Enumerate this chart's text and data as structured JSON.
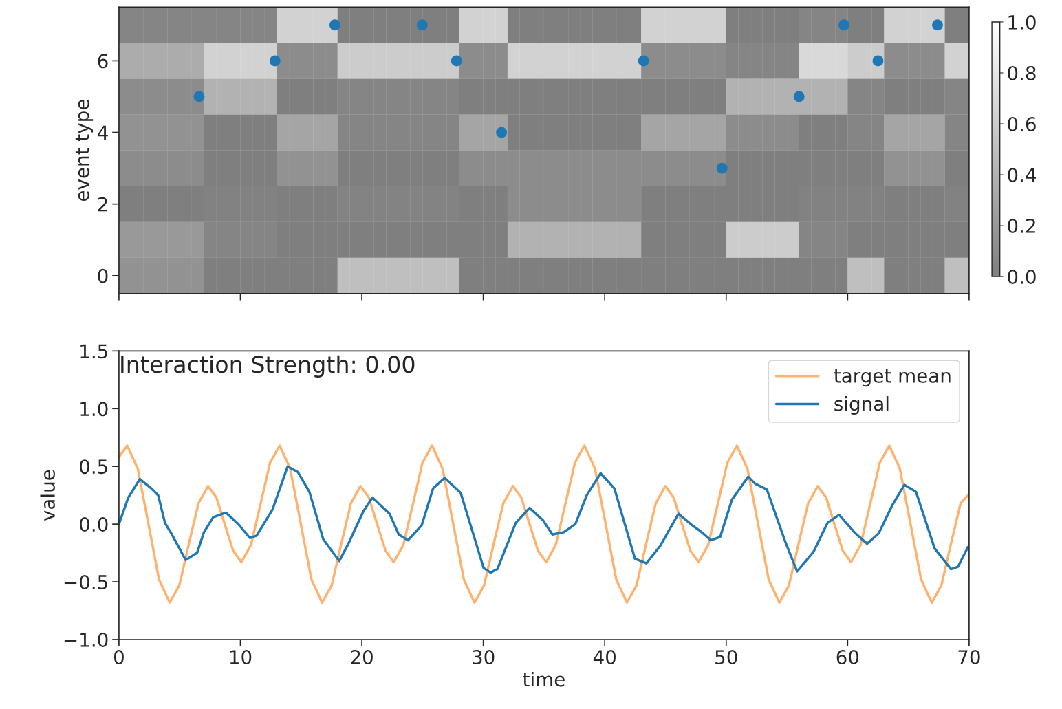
{
  "chart_data": [
    {
      "type": "heatmap",
      "ylabel": "event type",
      "x": [
        0.5,
        1.5,
        2.5,
        3.5,
        4.5,
        5.5,
        6.5,
        7.5,
        8.5,
        9.5,
        10.5,
        11.5,
        12.5,
        13.5,
        14.5,
        15.5,
        16.5,
        17.5,
        18.5,
        19.5,
        20.5,
        21.5,
        22.5,
        23.5,
        24.5,
        25.5,
        26.5,
        27.5,
        28.5,
        29.5,
        30.5,
        31.5,
        32.5,
        33.5,
        34.5,
        35.5,
        36.5,
        37.5,
        38.5,
        39.5,
        40.5,
        41.5,
        42.5,
        43.5,
        44.5,
        45.5,
        46.5,
        47.5,
        48.5,
        49.5,
        50.5,
        51.5,
        52.5,
        53.5,
        54.5,
        55.5,
        56.5,
        57.5,
        58.5,
        59.5,
        60.5,
        61.5,
        62.5,
        63.5,
        64.5,
        65.5,
        66.5,
        67.5,
        68.5,
        69.5
      ],
      "y": [
        7,
        6,
        5,
        4,
        3,
        2,
        1,
        0
      ],
      "cells": [
        [
          0.05,
          0.05,
          0.05,
          0.05,
          0.05,
          0.05,
          0.05,
          0.05,
          0.05,
          0.05,
          0.05,
          0.05,
          0.05,
          0.65,
          0.65,
          0.65,
          0.65,
          0.65,
          0,
          0,
          0,
          0,
          0,
          0,
          0,
          0,
          0,
          0,
          0.65,
          0.65,
          0.65,
          0.65,
          0,
          0,
          0,
          0,
          0,
          0,
          0,
          0,
          0,
          0,
          0,
          0.65,
          0.65,
          0.65,
          0.65,
          0.65,
          0.65,
          0.65,
          0,
          0,
          0,
          0,
          0,
          0,
          0.05,
          0.05,
          0.05,
          0.05,
          0,
          0,
          0,
          0.65,
          0.65,
          0.65,
          0.65,
          0.65,
          0,
          0
        ],
        [
          0.35,
          0.35,
          0.35,
          0.35,
          0.35,
          0.35,
          0.35,
          0.65,
          0.65,
          0.65,
          0.65,
          0.65,
          0.65,
          0.1,
          0.1,
          0.1,
          0.1,
          0.1,
          0.6,
          0.6,
          0.6,
          0.6,
          0.6,
          0.6,
          0.6,
          0.6,
          0.6,
          0.6,
          0.1,
          0.1,
          0.1,
          0.1,
          0.65,
          0.65,
          0.65,
          0.65,
          0.65,
          0.65,
          0.65,
          0.65,
          0.65,
          0.65,
          0.65,
          0.1,
          0.1,
          0.1,
          0.1,
          0.1,
          0.1,
          0.1,
          0.05,
          0.05,
          0.05,
          0.05,
          0.05,
          0.05,
          0.7,
          0.7,
          0.7,
          0.7,
          0.6,
          0.6,
          0.6,
          0.1,
          0.1,
          0.1,
          0.1,
          0.1,
          0.65,
          0.65
        ],
        [
          0.1,
          0.1,
          0.1,
          0.1,
          0.1,
          0.1,
          0.1,
          0.4,
          0.4,
          0.4,
          0.4,
          0.4,
          0.4,
          0,
          0,
          0,
          0,
          0,
          0.05,
          0.05,
          0.05,
          0.05,
          0.05,
          0.05,
          0.05,
          0.05,
          0.05,
          0.05,
          0,
          0,
          0,
          0,
          0,
          0,
          0,
          0,
          0,
          0,
          0,
          0,
          0,
          0,
          0,
          0,
          0,
          0,
          0,
          0,
          0,
          0,
          0.4,
          0.4,
          0.4,
          0.4,
          0.4,
          0.4,
          0.4,
          0.4,
          0.4,
          0.4,
          0.05,
          0.05,
          0.05,
          0,
          0,
          0,
          0,
          0,
          0.05,
          0.05
        ],
        [
          0.15,
          0.15,
          0.15,
          0.15,
          0.15,
          0.15,
          0.15,
          0,
          0,
          0,
          0,
          0,
          0,
          0.3,
          0.3,
          0.3,
          0.3,
          0.3,
          0.05,
          0.05,
          0.05,
          0.05,
          0.05,
          0.05,
          0.05,
          0.05,
          0.05,
          0.05,
          0.3,
          0.3,
          0.3,
          0.3,
          0,
          0,
          0,
          0,
          0,
          0,
          0,
          0,
          0,
          0,
          0,
          0.3,
          0.3,
          0.3,
          0.3,
          0.3,
          0.3,
          0.3,
          0.1,
          0.1,
          0.1,
          0.1,
          0.1,
          0.1,
          0,
          0,
          0,
          0,
          0.05,
          0.05,
          0.05,
          0.3,
          0.3,
          0.3,
          0.3,
          0.3,
          0.05,
          0.05
        ],
        [
          0.1,
          0.1,
          0.1,
          0.1,
          0.1,
          0.1,
          0.1,
          0,
          0,
          0,
          0,
          0,
          0,
          0.15,
          0.15,
          0.15,
          0.15,
          0.15,
          0,
          0,
          0,
          0,
          0,
          0,
          0,
          0,
          0,
          0,
          0.1,
          0.1,
          0.1,
          0.1,
          0.1,
          0.1,
          0.1,
          0.1,
          0.1,
          0.1,
          0.1,
          0.1,
          0.1,
          0.1,
          0.1,
          0.1,
          0.1,
          0.1,
          0.1,
          0.1,
          0.1,
          0.1,
          0,
          0,
          0,
          0,
          0,
          0,
          0,
          0,
          0,
          0,
          0,
          0,
          0,
          0.15,
          0.15,
          0.15,
          0.15,
          0.15,
          0,
          0
        ],
        [
          0,
          0,
          0,
          0,
          0,
          0,
          0,
          0.02,
          0.02,
          0.02,
          0.02,
          0.02,
          0.02,
          0,
          0,
          0,
          0,
          0,
          0.03,
          0.03,
          0.03,
          0.03,
          0.03,
          0.03,
          0.03,
          0.03,
          0.03,
          0.03,
          0,
          0,
          0,
          0,
          0.1,
          0.1,
          0.1,
          0.1,
          0.1,
          0.1,
          0.1,
          0.1,
          0.1,
          0.1,
          0.1,
          0,
          0,
          0,
          0,
          0,
          0,
          0,
          0,
          0,
          0,
          0,
          0,
          0,
          0.02,
          0.02,
          0.02,
          0.02,
          0.02,
          0.02,
          0.02,
          0,
          0,
          0,
          0,
          0,
          0.02,
          0.02
        ],
        [
          0.2,
          0.2,
          0.2,
          0.2,
          0.2,
          0.2,
          0.2,
          0.05,
          0.05,
          0.05,
          0.05,
          0.05,
          0.05,
          0,
          0,
          0,
          0,
          0,
          0,
          0,
          0,
          0,
          0,
          0,
          0,
          0,
          0,
          0,
          0,
          0,
          0,
          0,
          0.4,
          0.4,
          0.4,
          0.4,
          0.4,
          0.4,
          0.4,
          0.4,
          0.4,
          0.4,
          0.4,
          0,
          0,
          0,
          0,
          0,
          0,
          0,
          0.6,
          0.6,
          0.6,
          0.6,
          0.6,
          0.6,
          0.05,
          0.05,
          0.05,
          0.05,
          0,
          0,
          0,
          0,
          0,
          0,
          0,
          0,
          0,
          0
        ],
        [
          0.15,
          0.15,
          0.15,
          0.15,
          0.15,
          0.15,
          0.15,
          0,
          0,
          0,
          0,
          0,
          0,
          0,
          0,
          0,
          0,
          0,
          0.5,
          0.5,
          0.5,
          0.5,
          0.5,
          0.5,
          0.5,
          0.5,
          0.5,
          0.5,
          0,
          0,
          0,
          0,
          0,
          0,
          0,
          0,
          0,
          0,
          0,
          0,
          0,
          0,
          0,
          0,
          0,
          0,
          0,
          0,
          0,
          0,
          0,
          0,
          0,
          0,
          0,
          0,
          0,
          0,
          0,
          0,
          0.5,
          0.5,
          0.5,
          0,
          0,
          0,
          0,
          0,
          0.5,
          0.5
        ]
      ],
      "clim": [
        0,
        1
      ],
      "cticks": [
        {
          "value": 0,
          "label": "0.0"
        },
        {
          "value": 0.2,
          "label": "0.2"
        },
        {
          "value": 0.4,
          "label": "0.4"
        },
        {
          "value": 0.6,
          "label": "0.6"
        },
        {
          "value": 0.8,
          "label": "0.8"
        },
        {
          "value": 1,
          "label": "1.0"
        }
      ],
      "xlim": [
        0,
        70
      ],
      "xticks": [
        0,
        10,
        20,
        30,
        40,
        50,
        60,
        70
      ],
      "ylim": [
        -0.5,
        7.5
      ],
      "yticks": [
        0,
        2,
        4,
        6
      ],
      "tick_labels": "y",
      "series": [
        {
          "type": "scatter",
          "marker": "circle",
          "color": "#1f77b4",
          "x": [
            6.6,
            12.85,
            17.78,
            24.97,
            27.8,
            31.5,
            43.2,
            49.66,
            56.0,
            59.7,
            62.5,
            67.4
          ],
          "values": [
            5,
            6,
            7,
            7,
            6,
            4,
            6,
            3,
            5,
            7,
            6,
            7
          ]
        }
      ]
    },
    {
      "type": "line",
      "xlabel": "time",
      "ylabel": "value",
      "annotations": [
        "Interaction Strength: 0.00"
      ],
      "xlim": [
        0,
        70
      ],
      "xticks": [
        0,
        10,
        20,
        30,
        40,
        50,
        60,
        70
      ],
      "ylim": [
        -1.0,
        1.5
      ],
      "yticks": [
        {
          "value": -1.0,
          "label": "−1.0"
        },
        {
          "value": -0.5,
          "label": "−0.5"
        },
        {
          "value": 0.0,
          "label": "0.0"
        },
        {
          "value": 0.5,
          "label": "0.5"
        },
        {
          "value": 1.0,
          "label": "1.0"
        },
        {
          "value": 1.5,
          "label": "1.5"
        }
      ],
      "legend": "top right",
      "series": [
        {
          "name": "target mean",
          "color": "#ffb26e",
          "x": [
            0,
            0.68,
            1.55,
            2.43,
            3.3,
            4.18,
            4.97,
            5.76,
            6.55,
            7.34,
            8.03,
            8.71,
            9.4,
            10.08,
            10.87,
            11.65,
            12.44,
            13.23,
            14.1,
            14.98,
            15.85,
            16.73,
            17.52,
            18.31,
            19.1,
            19.89,
            20.58,
            21.26,
            21.95,
            22.63,
            23.42,
            24.2,
            24.99,
            25.78,
            26.65,
            27.53,
            28.4,
            29.28,
            30.07,
            30.86,
            31.65,
            32.44,
            33.13,
            33.81,
            34.5,
            35.18,
            35.97,
            36.75,
            37.54,
            38.33,
            39.2,
            40.08,
            40.95,
            41.83,
            42.62,
            43.41,
            44.2,
            44.99,
            45.68,
            46.36,
            47.05,
            47.73,
            48.52,
            49.3,
            50.09,
            50.88,
            51.75,
            52.63,
            53.5,
            54.38,
            55.17,
            55.96,
            56.75,
            57.54,
            58.23,
            58.91,
            59.6,
            60.28,
            61.07,
            61.85,
            62.64,
            63.43,
            64.3,
            65.18,
            66.05,
            66.93,
            67.72,
            68.51,
            69.3,
            70
          ],
          "values": [
            0.58,
            0.68,
            0.48,
            0.0,
            -0.48,
            -0.68,
            -0.53,
            -0.17,
            0.18,
            0.33,
            0.23,
            0.0,
            -0.23,
            -0.33,
            -0.18,
            0.17,
            0.53,
            0.68,
            0.48,
            0.0,
            -0.48,
            -0.68,
            -0.53,
            -0.17,
            0.18,
            0.33,
            0.23,
            0.0,
            -0.23,
            -0.33,
            -0.18,
            0.17,
            0.53,
            0.68,
            0.48,
            0.0,
            -0.48,
            -0.68,
            -0.53,
            -0.17,
            0.18,
            0.33,
            0.23,
            0.0,
            -0.23,
            -0.33,
            -0.18,
            0.17,
            0.53,
            0.68,
            0.48,
            0.0,
            -0.48,
            -0.68,
            -0.53,
            -0.17,
            0.18,
            0.33,
            0.23,
            0.0,
            -0.23,
            -0.33,
            -0.18,
            0.17,
            0.53,
            0.68,
            0.48,
            0.0,
            -0.48,
            -0.68,
            -0.53,
            -0.17,
            0.18,
            0.33,
            0.23,
            0.0,
            -0.23,
            -0.33,
            -0.18,
            0.17,
            0.53,
            0.68,
            0.48,
            0.0,
            -0.48,
            -0.68,
            -0.53,
            -0.17,
            0.18,
            0.26
          ]
        },
        {
          "name": "signal",
          "color": "#1f77b4",
          "x": [
            0,
            0.77,
            1.72,
            2.66,
            3.23,
            3.79,
            4.36,
            5.49,
            6.43,
            7.0,
            7.76,
            8.8,
            9.83,
            10.78,
            11.34,
            12.66,
            13.89,
            14.74,
            15.68,
            16.82,
            18.14,
            18.89,
            20.12,
            20.87,
            22.28,
            23.04,
            23.8,
            24.93,
            25.87,
            26.82,
            28.14,
            30.03,
            30.6,
            31.16,
            32.67,
            33.81,
            34.94,
            35.69,
            36.63,
            37.58,
            38.52,
            39.66,
            40.79,
            42.49,
            43.43,
            44.56,
            46.07,
            47.2,
            47.86,
            48.75,
            49.51,
            50.47,
            51.81,
            52.39,
            53.35,
            54.89,
            55.84,
            57.19,
            58.34,
            59.3,
            60.64,
            61.6,
            62.56,
            63.71,
            64.67,
            65.63,
            67.16,
            68.51,
            69.08,
            69.9
          ],
          "values": [
            0.0,
            0.23,
            0.39,
            0.31,
            0.25,
            0.01,
            -0.09,
            -0.31,
            -0.25,
            -0.07,
            0.06,
            0.1,
            0.0,
            -0.12,
            -0.1,
            0.13,
            0.5,
            0.45,
            0.28,
            -0.13,
            -0.32,
            -0.17,
            0.11,
            0.23,
            0.09,
            -0.09,
            -0.14,
            -0.01,
            0.31,
            0.4,
            0.27,
            -0.38,
            -0.42,
            -0.39,
            0.01,
            0.14,
            0.03,
            -0.09,
            -0.07,
            0.0,
            0.25,
            0.44,
            0.31,
            -0.3,
            -0.34,
            -0.19,
            0.09,
            -0.01,
            -0.06,
            -0.14,
            -0.11,
            0.21,
            0.41,
            0.35,
            0.3,
            -0.16,
            -0.41,
            -0.24,
            0.01,
            0.08,
            -0.08,
            -0.17,
            -0.08,
            0.17,
            0.34,
            0.28,
            -0.21,
            -0.39,
            -0.37,
            -0.2
          ]
        }
      ]
    }
  ]
}
